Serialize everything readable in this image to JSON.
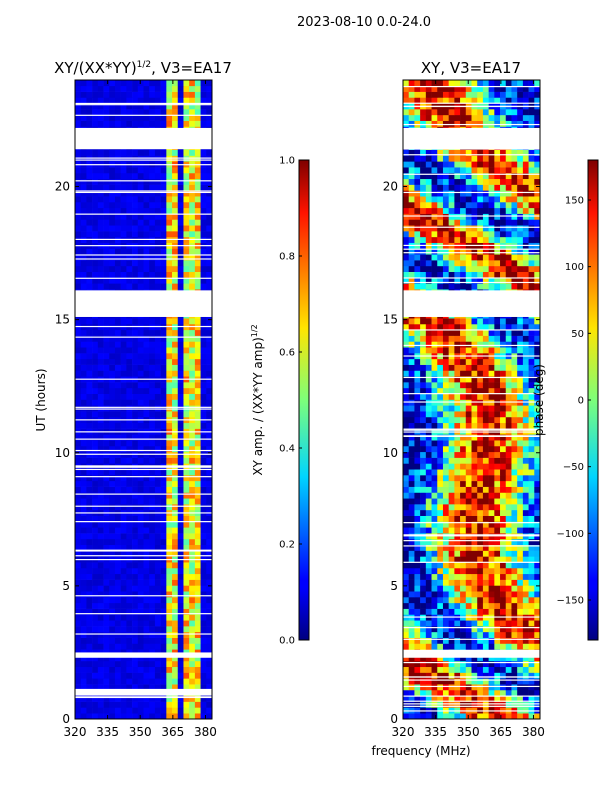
{
  "figure": {
    "suptitle": "2023-08-10 0.0-24.0",
    "shared_xlabel": "frequency (MHz)"
  },
  "chart_data": [
    {
      "type": "heatmap",
      "title_main": "XY/(XX*YY)",
      "title_sup": "1/2",
      "title_tail": ", V3=EA17",
      "xlabel": "frequency (MHz)",
      "ylabel": "UT (hours)",
      "xlim": [
        320,
        383
      ],
      "ylim": [
        0,
        24
      ],
      "xticks": [
        320,
        335,
        350,
        365,
        380
      ],
      "yticks": [
        0,
        5,
        10,
        15,
        20
      ],
      "colorbar": {
        "label_main": "XY amp. / (XX*YY amp)",
        "label_sup": "1/2",
        "range": [
          0.0,
          1.0
        ],
        "ticks": [
          "0.0",
          "0.2",
          "0.4",
          "0.6",
          "0.8",
          "1.0"
        ],
        "colormap": "jet"
      },
      "flagged_ut_gaps": [
        [
          0.9,
          1.1
        ],
        [
          2.3,
          2.5
        ],
        [
          15.1,
          16.1
        ],
        [
          21.4,
          22.2
        ]
      ],
      "rfi_channels_mhz": [
        364,
        366,
        371,
        373,
        377
      ]
    },
    {
      "type": "heatmap",
      "title": "XY, V3=EA17",
      "xlabel": "frequency (MHz)",
      "ylabel": "",
      "xlim": [
        320,
        383
      ],
      "ylim": [
        0,
        24
      ],
      "xticks": [
        320,
        335,
        350,
        365,
        380
      ],
      "yticks": [
        0,
        5,
        10,
        15,
        20
      ],
      "colorbar": {
        "label": "phase (deg)",
        "range": [
          -180,
          180
        ],
        "ticks": [
          "−150",
          "−100",
          "−50",
          "0",
          "50",
          "100",
          "150"
        ],
        "colormap": "jet"
      },
      "flagged_ut_gaps": [
        [
          2.3,
          2.6
        ],
        [
          15.1,
          16.1
        ],
        [
          21.4,
          22.2
        ]
      ]
    }
  ]
}
